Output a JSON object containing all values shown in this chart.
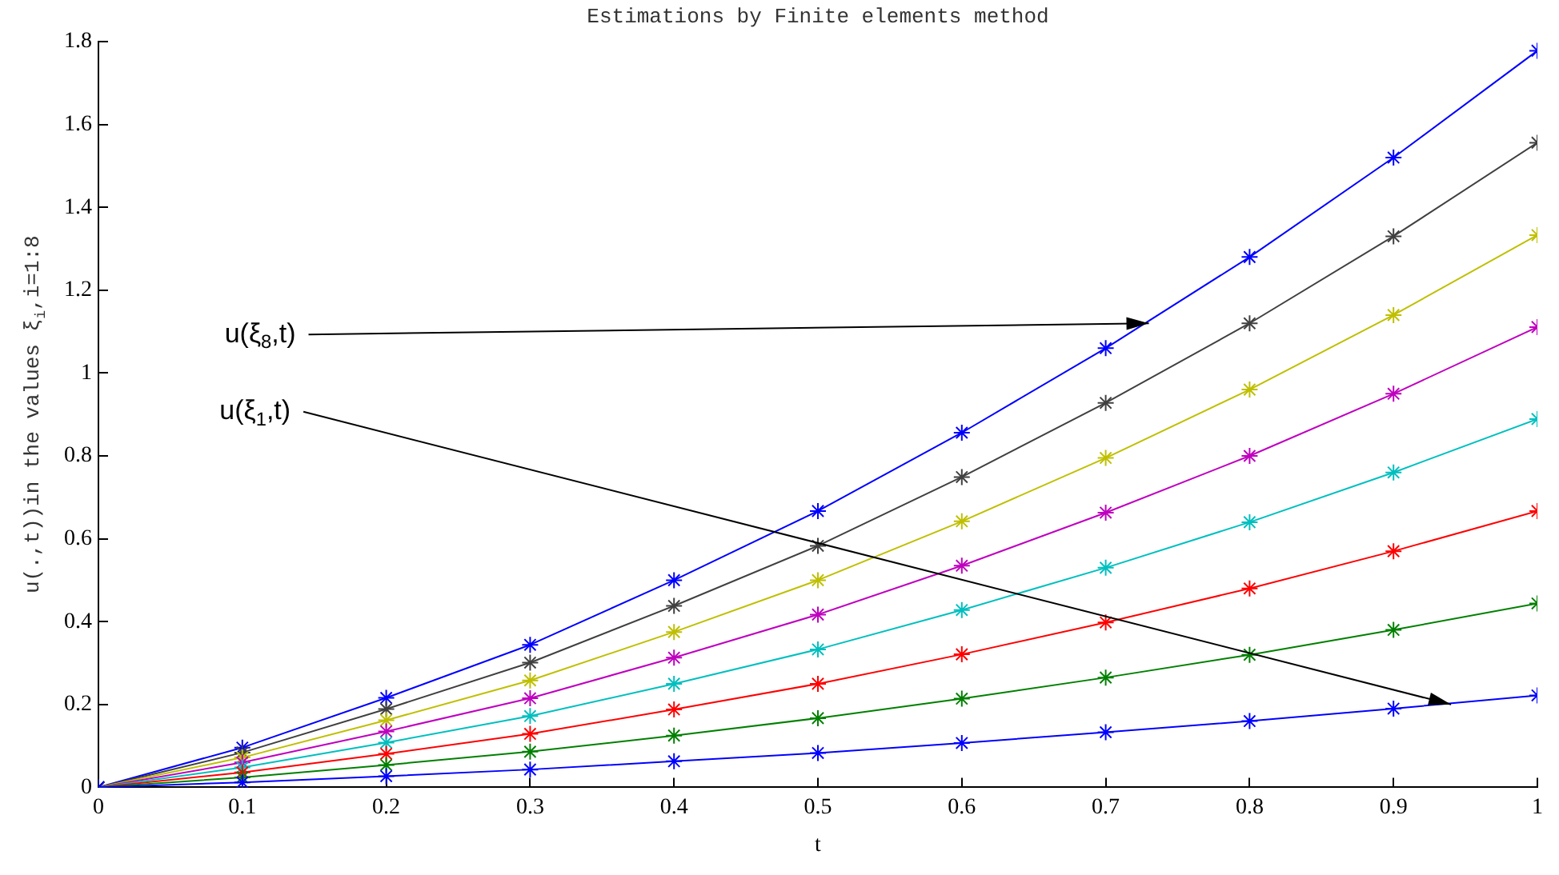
{
  "chart_data": {
    "type": "line",
    "title": "Estimations by Finite elements method",
    "xlabel": "t",
    "ylabel": "u(.,t))in the values ξ$_{i}$,i=1:8",
    "x": [
      0,
      0.1,
      0.2,
      0.3,
      0.4,
      0.5,
      0.6,
      0.7,
      0.8,
      0.9,
      1
    ],
    "series": [
      {
        "color": "#0000ff",
        "values": [
          0,
          0.012,
          0.027,
          0.043,
          0.063,
          0.083,
          0.107,
          0.133,
          0.16,
          0.19,
          0.222
        ]
      },
      {
        "color": "#008000",
        "values": [
          0,
          0.024,
          0.054,
          0.086,
          0.125,
          0.167,
          0.214,
          0.265,
          0.32,
          0.38,
          0.444
        ]
      },
      {
        "color": "#ff0000",
        "values": [
          0,
          0.036,
          0.081,
          0.129,
          0.188,
          0.25,
          0.321,
          0.398,
          0.48,
          0.57,
          0.667
        ]
      },
      {
        "color": "#00bfbf",
        "values": [
          0,
          0.048,
          0.108,
          0.172,
          0.25,
          0.333,
          0.428,
          0.53,
          0.64,
          0.76,
          0.889
        ]
      },
      {
        "color": "#bf00bf",
        "values": [
          0,
          0.06,
          0.135,
          0.215,
          0.313,
          0.417,
          0.535,
          0.663,
          0.8,
          0.95,
          1.111
        ]
      },
      {
        "color": "#bfbf00",
        "values": [
          0,
          0.072,
          0.162,
          0.258,
          0.375,
          0.5,
          0.642,
          0.795,
          0.96,
          1.14,
          1.333
        ]
      },
      {
        "color": "#404040",
        "values": [
          0,
          0.084,
          0.189,
          0.301,
          0.438,
          0.583,
          0.749,
          0.928,
          1.12,
          1.33,
          1.556
        ]
      },
      {
        "color": "#0000ff",
        "values": [
          0,
          0.096,
          0.216,
          0.344,
          0.5,
          0.667,
          0.856,
          1.06,
          1.28,
          1.52,
          1.778
        ]
      }
    ],
    "xlim": [
      0,
      1
    ],
    "xticks": [
      0,
      0.1,
      0.2,
      0.3,
      0.4,
      0.5,
      0.6,
      0.7,
      0.8,
      0.9,
      1
    ],
    "ylim": [
      0,
      1.8
    ],
    "yticks": [
      0,
      0.2,
      0.4,
      0.6,
      0.8,
      1,
      1.2,
      1.4,
      1.6,
      1.8
    ],
    "grid": false,
    "legend": false,
    "marker": "cross",
    "line_style": "solid",
    "annotations": [
      {
        "text": "u(ξ$_{8}$,t)",
        "x": 0.73,
        "y": 1.12
      },
      {
        "text": "u(ξ$_{1}$,t)",
        "x": 0.94,
        "y": 0.2
      }
    ]
  }
}
